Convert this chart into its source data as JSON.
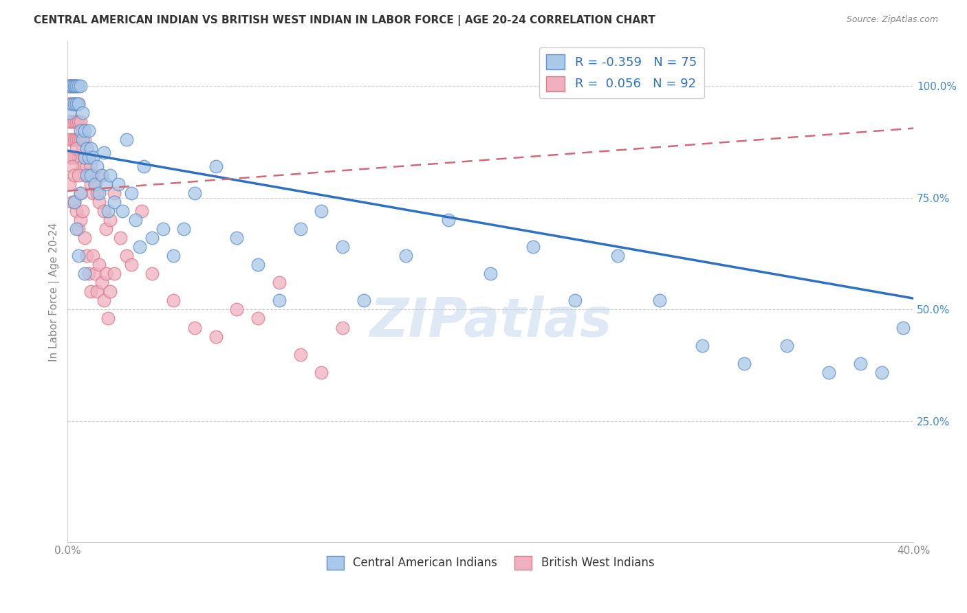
{
  "title": "CENTRAL AMERICAN INDIAN VS BRITISH WEST INDIAN IN LABOR FORCE | AGE 20-24 CORRELATION CHART",
  "source": "Source: ZipAtlas.com",
  "ylabel": "In Labor Force | Age 20-24",
  "yticks": [
    0.0,
    0.25,
    0.5,
    0.75,
    1.0
  ],
  "ytick_labels": [
    "",
    "25.0%",
    "50.0%",
    "75.0%",
    "100.0%"
  ],
  "xlim": [
    0.0,
    0.4
  ],
  "ylim": [
    -0.02,
    1.1
  ],
  "blue_R": -0.359,
  "blue_N": 75,
  "pink_R": 0.056,
  "pink_N": 92,
  "blue_color": "#aac8e8",
  "pink_color": "#f0b0c0",
  "blue_edge_color": "#6090c8",
  "pink_edge_color": "#d87888",
  "blue_line_color": "#3070c0",
  "pink_line_color": "#d06878",
  "legend_label_blue": "Central American Indians",
  "legend_label_pink": "British West Indians",
  "watermark": "ZIPatlas",
  "blue_trend_x0": 0.0,
  "blue_trend_y0": 0.855,
  "blue_trend_x1": 0.4,
  "blue_trend_y1": 0.525,
  "pink_trend_x0": 0.0,
  "pink_trend_y0": 0.765,
  "pink_trend_x1": 0.4,
  "pink_trend_y1": 0.905,
  "blue_x": [
    0.001,
    0.001,
    0.001,
    0.002,
    0.002,
    0.002,
    0.003,
    0.003,
    0.003,
    0.004,
    0.004,
    0.004,
    0.005,
    0.005,
    0.006,
    0.006,
    0.007,
    0.007,
    0.008,
    0.008,
    0.009,
    0.009,
    0.01,
    0.01,
    0.011,
    0.011,
    0.012,
    0.013,
    0.014,
    0.015,
    0.016,
    0.017,
    0.018,
    0.019,
    0.02,
    0.022,
    0.024,
    0.026,
    0.028,
    0.03,
    0.032,
    0.034,
    0.036,
    0.04,
    0.045,
    0.05,
    0.055,
    0.06,
    0.07,
    0.08,
    0.09,
    0.1,
    0.11,
    0.12,
    0.13,
    0.14,
    0.16,
    0.18,
    0.2,
    0.22,
    0.24,
    0.26,
    0.28,
    0.3,
    0.32,
    0.34,
    0.36,
    0.375,
    0.385,
    0.395,
    0.003,
    0.004,
    0.005,
    0.006,
    0.008
  ],
  "blue_y": [
    1.0,
    1.0,
    0.94,
    1.0,
    1.0,
    0.96,
    1.0,
    1.0,
    0.96,
    1.0,
    1.0,
    0.96,
    1.0,
    0.96,
    0.9,
    1.0,
    0.94,
    0.88,
    0.9,
    0.84,
    0.86,
    0.8,
    0.9,
    0.84,
    0.86,
    0.8,
    0.84,
    0.78,
    0.82,
    0.76,
    0.8,
    0.85,
    0.78,
    0.72,
    0.8,
    0.74,
    0.78,
    0.72,
    0.88,
    0.76,
    0.7,
    0.64,
    0.82,
    0.66,
    0.68,
    0.62,
    0.68,
    0.76,
    0.82,
    0.66,
    0.6,
    0.52,
    0.68,
    0.72,
    0.64,
    0.52,
    0.62,
    0.7,
    0.58,
    0.64,
    0.52,
    0.62,
    0.52,
    0.42,
    0.38,
    0.42,
    0.36,
    0.38,
    0.36,
    0.46,
    0.74,
    0.68,
    0.62,
    0.76,
    0.58
  ],
  "pink_x": [
    0.001,
    0.001,
    0.001,
    0.001,
    0.001,
    0.001,
    0.001,
    0.002,
    0.002,
    0.002,
    0.002,
    0.002,
    0.002,
    0.003,
    0.003,
    0.003,
    0.003,
    0.003,
    0.004,
    0.004,
    0.004,
    0.004,
    0.005,
    0.005,
    0.005,
    0.005,
    0.006,
    0.006,
    0.006,
    0.007,
    0.007,
    0.007,
    0.008,
    0.008,
    0.008,
    0.009,
    0.009,
    0.01,
    0.01,
    0.011,
    0.011,
    0.012,
    0.012,
    0.013,
    0.014,
    0.015,
    0.016,
    0.017,
    0.018,
    0.02,
    0.022,
    0.025,
    0.028,
    0.03,
    0.035,
    0.04,
    0.05,
    0.06,
    0.07,
    0.08,
    0.09,
    0.1,
    0.11,
    0.12,
    0.13,
    0.001,
    0.001,
    0.002,
    0.002,
    0.003,
    0.003,
    0.004,
    0.004,
    0.005,
    0.005,
    0.006,
    0.006,
    0.007,
    0.008,
    0.009,
    0.01,
    0.011,
    0.012,
    0.013,
    0.014,
    0.015,
    0.016,
    0.017,
    0.018,
    0.019,
    0.02,
    0.022
  ],
  "pink_y": [
    1.0,
    1.0,
    1.0,
    0.96,
    0.96,
    0.92,
    0.88,
    1.0,
    1.0,
    0.96,
    0.92,
    0.88,
    0.84,
    1.0,
    0.96,
    0.92,
    0.88,
    0.84,
    1.0,
    0.96,
    0.92,
    0.88,
    0.96,
    0.92,
    0.88,
    0.84,
    0.92,
    0.88,
    0.84,
    0.9,
    0.86,
    0.82,
    0.88,
    0.84,
    0.8,
    0.86,
    0.82,
    0.84,
    0.8,
    0.82,
    0.78,
    0.8,
    0.76,
    0.78,
    0.76,
    0.74,
    0.8,
    0.72,
    0.68,
    0.7,
    0.76,
    0.66,
    0.62,
    0.6,
    0.72,
    0.58,
    0.52,
    0.46,
    0.44,
    0.5,
    0.48,
    0.56,
    0.4,
    0.36,
    0.46,
    0.84,
    0.78,
    0.82,
    0.74,
    0.8,
    0.74,
    0.86,
    0.72,
    0.8,
    0.68,
    0.76,
    0.7,
    0.72,
    0.66,
    0.62,
    0.58,
    0.54,
    0.62,
    0.58,
    0.54,
    0.6,
    0.56,
    0.52,
    0.58,
    0.48,
    0.54,
    0.58
  ]
}
